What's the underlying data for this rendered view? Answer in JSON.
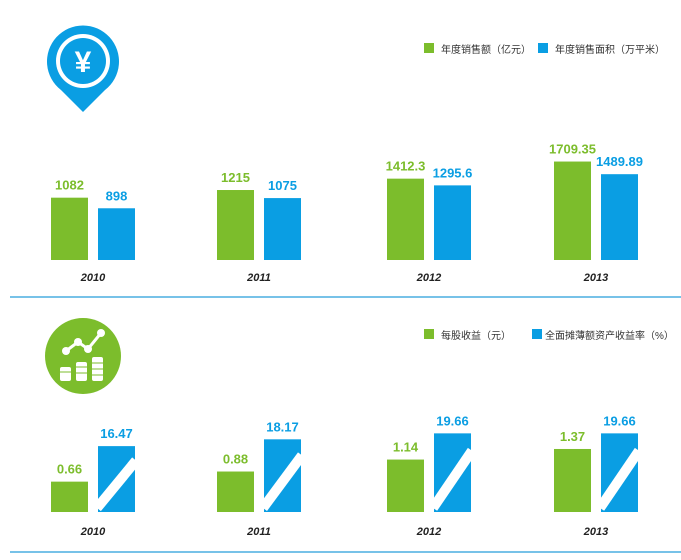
{
  "colors": {
    "green": "#7cbd2c",
    "blue": "#0a9ee3",
    "divider": "#4aaee0",
    "white": "#ffffff"
  },
  "icons": {
    "top": "yen-location-pin-icon",
    "bottom": "growth-chart-coins-icon"
  },
  "chart_data": [
    {
      "type": "bar",
      "categories": [
        "2010",
        "2011",
        "2012",
        "2013"
      ],
      "series": [
        {
          "name": "年度销售额（亿元）",
          "values": [
            1082,
            1215,
            1412.3,
            1709.35
          ],
          "labels": [
            "1082",
            "1215",
            "1412.3",
            "1709.35"
          ]
        },
        {
          "name": "年度销售面积（万平米）",
          "values": [
            898,
            1075,
            1295.6,
            1489.89
          ],
          "labels": [
            "898",
            "1075",
            "1295.6",
            "1489.89"
          ]
        }
      ],
      "legend_position": "top-right",
      "grid": false
    },
    {
      "type": "bar",
      "categories": [
        "2010",
        "2011",
        "2012",
        "2013"
      ],
      "series": [
        {
          "name": "每股收益（元）",
          "values": [
            0.66,
            0.88,
            1.14,
            1.37
          ],
          "labels": [
            "0.66",
            "0.88",
            "1.14",
            "1.37"
          ]
        },
        {
          "name": "全面摊薄额资产收益率（%）",
          "values": [
            16.47,
            18.17,
            19.66,
            19.66
          ],
          "labels": [
            "16.47",
            "18.17",
            "19.66",
            "19.66"
          ]
        }
      ],
      "legend_position": "top-right",
      "grid": false
    }
  ]
}
